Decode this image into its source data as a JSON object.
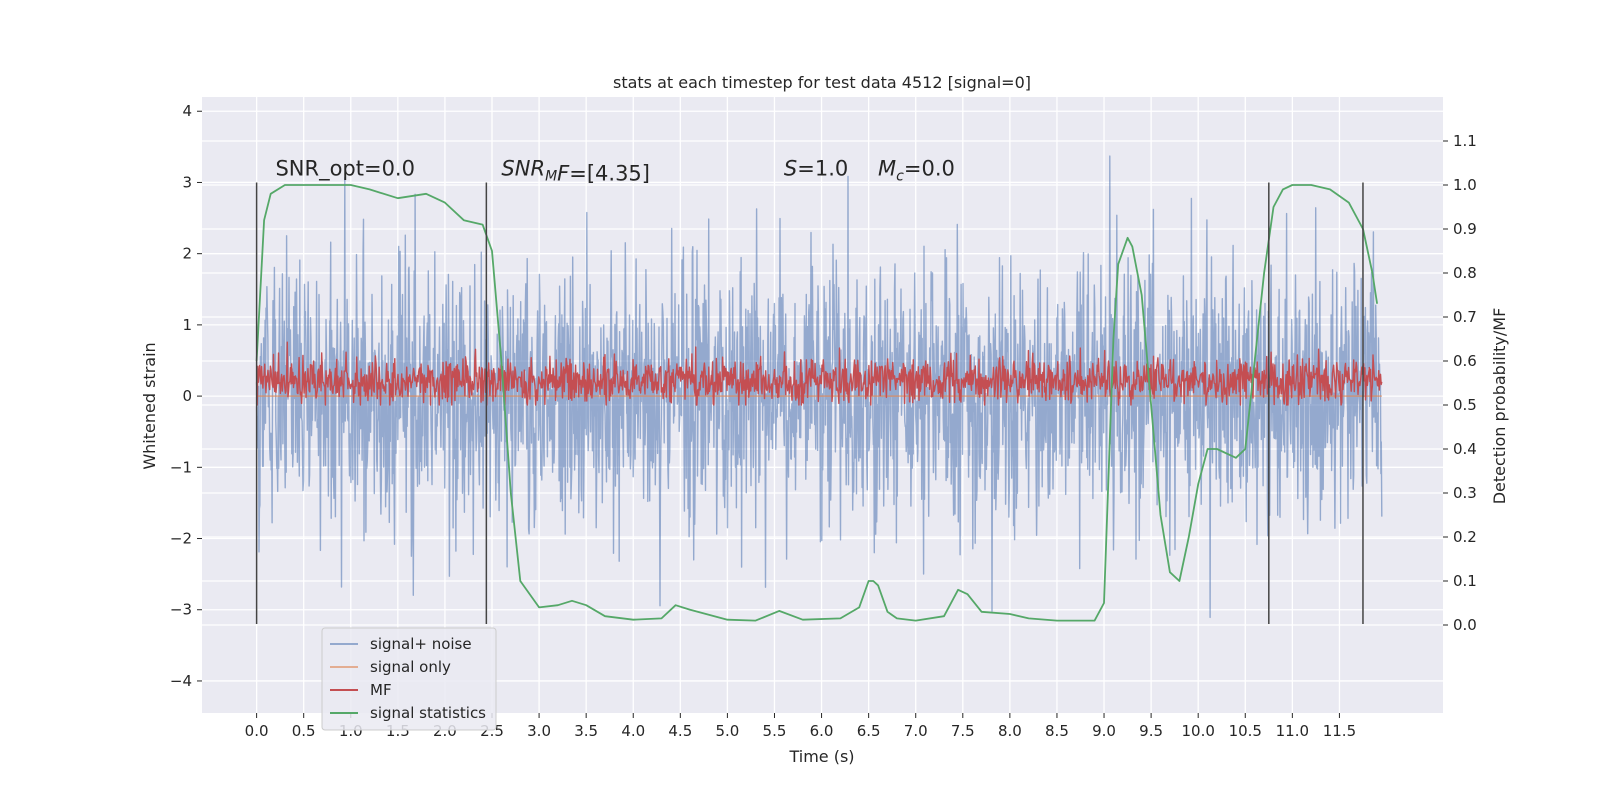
{
  "chart_data": {
    "type": "line",
    "title": "stats at each timestep for test data 4512 [signal=0]",
    "xlabel": "Time (s)",
    "ylabel": "Whitened strain",
    "ylabel_right": "Detection probability/MF",
    "xlim": [
      -0.58,
      12.6
    ],
    "ylim": [
      -4.45,
      4.2
    ],
    "ylim_right": [
      -0.2,
      1.2
    ],
    "xticks": [
      0.0,
      0.5,
      1.0,
      1.5,
      2.0,
      2.5,
      3.0,
      3.5,
      4.0,
      4.5,
      5.0,
      5.5,
      6.0,
      6.5,
      7.0,
      7.5,
      8.0,
      8.5,
      9.0,
      9.5,
      10.0,
      10.5,
      11.0,
      11.5
    ],
    "xtick_labels": [
      "0.0",
      "0.5",
      "1.0",
      "1.5",
      "2.0",
      "2.5",
      "3.0",
      "3.5",
      "4.0",
      "4.5",
      "5.0",
      "5.5",
      "6.0",
      "6.5",
      "7.0",
      "7.5",
      "8.0",
      "8.5",
      "9.0",
      "9.5",
      "10.0",
      "10.5",
      "11.0",
      "11.5"
    ],
    "yticks": [
      -4,
      -3,
      -2,
      -1,
      0,
      1,
      2,
      3,
      4
    ],
    "ytick_labels": [
      "−4",
      "−3",
      "−2",
      "−1",
      "0",
      "1",
      "2",
      "3",
      "4"
    ],
    "yticks_right": [
      0.0,
      0.1,
      0.2,
      0.3,
      0.4,
      0.5,
      0.6,
      0.7,
      0.8,
      0.9,
      1.0,
      1.1
    ],
    "ytick_labels_right": [
      "0.0",
      "0.1",
      "0.2",
      "0.3",
      "0.4",
      "0.5",
      "0.6",
      "0.7",
      "0.8",
      "0.9",
      "1.0",
      "1.1"
    ],
    "grid": true,
    "legend_position": "lower-left",
    "annotations": [
      {
        "text_main": "SNR_opt=0.0",
        "text_sub": "",
        "text_tail": "",
        "italic": false,
        "x": 0.2,
        "y": 3.1
      },
      {
        "text_main": "SNR",
        "text_sub": "M",
        "text_tail": "F=[4.35]",
        "italic": true,
        "x": 2.6,
        "y": 3.1
      },
      {
        "text_main": "S",
        "text_sub": "",
        "text_tail": "=1.0",
        "italic": true,
        "x": 5.6,
        "y": 3.1
      },
      {
        "text_main": "M",
        "text_sub": "c",
        "text_tail": "=0.0",
        "italic": true,
        "x": 6.6,
        "y": 3.1
      }
    ],
    "vlines": [
      0.0,
      2.44,
      10.75,
      11.75
    ],
    "vline_range": [
      -3.2,
      3.0
    ],
    "series": [
      {
        "name": "signal+ noise",
        "color": "#4c72b0",
        "opacity": 0.55,
        "axis": "left",
        "style": "noise",
        "t_range": [
          0.0,
          11.95
        ],
        "sigma": 0.9,
        "envelope_max": 3.7,
        "envelope_min": -4.1
      },
      {
        "name": "signal only",
        "color": "#dd8452",
        "opacity": 0.6,
        "axis": "left",
        "style": "line",
        "x": [
          0.0,
          11.95
        ],
        "y": [
          0.0,
          0.0
        ]
      },
      {
        "name": "MF",
        "color": "#c44e52",
        "opacity": 1.0,
        "axis": "right",
        "style": "mf",
        "t_range": [
          0.0,
          11.95
        ],
        "mean": 0.555,
        "spread": 0.025,
        "max": 0.68,
        "min": 0.5
      },
      {
        "name": "signal statistics",
        "color": "#55a868",
        "opacity": 1.0,
        "axis": "right",
        "style": "line",
        "x": [
          0.0,
          0.08,
          0.15,
          0.3,
          0.5,
          1.0,
          1.2,
          1.5,
          1.8,
          2.0,
          2.2,
          2.4,
          2.5,
          2.6,
          2.7,
          2.8,
          3.0,
          3.2,
          3.35,
          3.5,
          3.7,
          4.0,
          4.3,
          4.45,
          4.6,
          5.0,
          5.3,
          5.55,
          5.8,
          6.2,
          6.4,
          6.5,
          6.55,
          6.6,
          6.7,
          6.8,
          7.0,
          7.3,
          7.45,
          7.55,
          7.7,
          8.0,
          8.2,
          8.5,
          8.9,
          9.0,
          9.1,
          9.15,
          9.25,
          9.3,
          9.4,
          9.5,
          9.6,
          9.7,
          9.8,
          9.9,
          10.0,
          10.1,
          10.2,
          10.4,
          10.5,
          10.6,
          10.7,
          10.8,
          10.9,
          11.0,
          11.2,
          11.4,
          11.6,
          11.75,
          11.85,
          11.9
        ],
        "y": [
          0.6,
          0.92,
          0.98,
          1.0,
          1.0,
          1.0,
          0.99,
          0.97,
          0.98,
          0.96,
          0.92,
          0.91,
          0.85,
          0.6,
          0.3,
          0.1,
          0.04,
          0.045,
          0.055,
          0.045,
          0.02,
          0.012,
          0.015,
          0.045,
          0.035,
          0.012,
          0.01,
          0.032,
          0.012,
          0.015,
          0.04,
          0.1,
          0.1,
          0.09,
          0.03,
          0.015,
          0.01,
          0.02,
          0.08,
          0.07,
          0.03,
          0.025,
          0.015,
          0.01,
          0.01,
          0.05,
          0.65,
          0.82,
          0.88,
          0.86,
          0.75,
          0.5,
          0.25,
          0.12,
          0.1,
          0.2,
          0.32,
          0.4,
          0.4,
          0.38,
          0.4,
          0.6,
          0.8,
          0.95,
          0.99,
          1.0,
          1.0,
          0.99,
          0.96,
          0.9,
          0.8,
          0.73
        ]
      }
    ]
  }
}
